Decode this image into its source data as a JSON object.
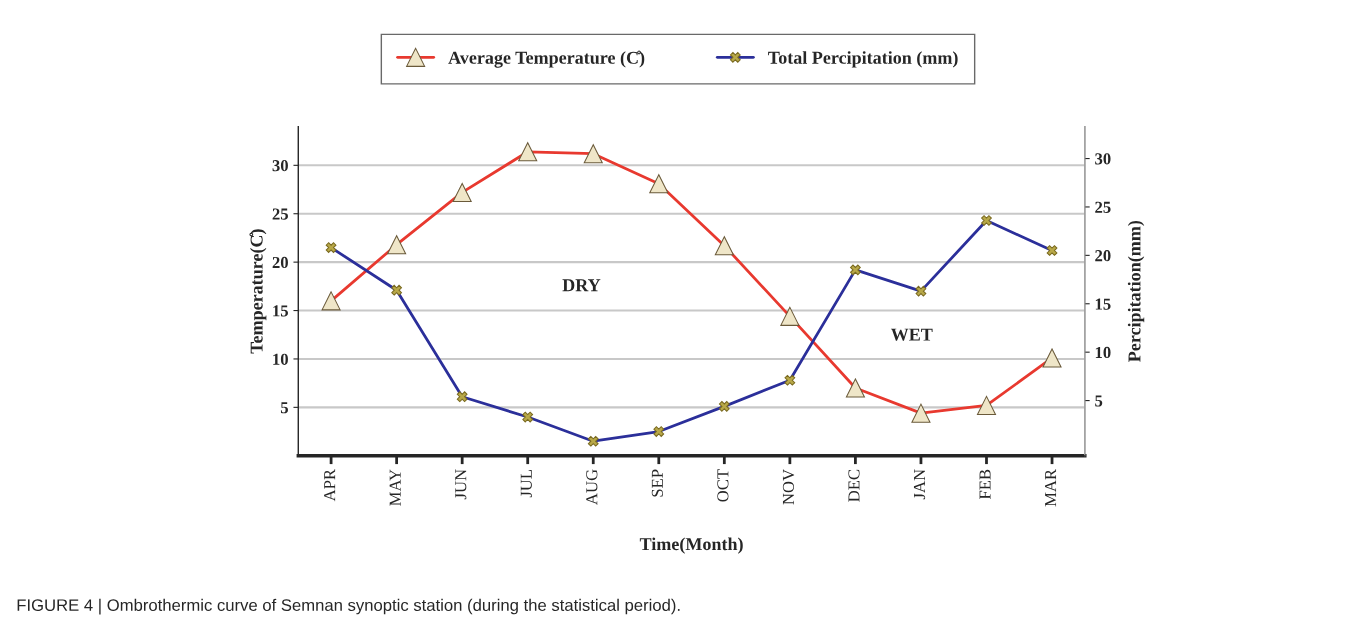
{
  "chart_data": {
    "type": "line",
    "xlabel": "Time(Month)",
    "ylabel": "Temperature(C̊)",
    "y2label": "Percipitation(mm)",
    "categories": [
      "APR",
      "MAY",
      "JUN",
      "JUL",
      "AUG",
      "SEP",
      "OCT",
      "NOV",
      "DEC",
      "JAN",
      "FEB",
      "MAR"
    ],
    "series": [
      {
        "name": "Average Temperature (C̊)",
        "color": "#e8392f",
        "marker": "triangle",
        "values": [
          16,
          21.8,
          27.2,
          31.4,
          31.2,
          28.1,
          21.7,
          14.4,
          7.0,
          4.4,
          5.2,
          10.1
        ]
      },
      {
        "name": "Total Percipitation (mm)",
        "color": "#2b2f9a",
        "marker": "cross",
        "axis": "y2",
        "values": [
          20.8,
          16.4,
          5.4,
          3.3,
          0.8,
          1.8,
          4.4,
          7.1,
          18.5,
          16.3,
          23.6,
          20.5
        ]
      }
    ],
    "ylim": [
      0,
      34
    ],
    "yticks": [
      5,
      10,
      15,
      20,
      25,
      30
    ],
    "y2lim": [
      -0.7,
      33.3
    ],
    "y2ticks": [
      5,
      10,
      15,
      20,
      25,
      30
    ],
    "grid": "y",
    "legend": "top",
    "annotations": [
      "DRY",
      "WET",
      "FIGURE 4 | Ombrothermic curve of Semnan synoptic station (during the statistical period)."
    ]
  }
}
